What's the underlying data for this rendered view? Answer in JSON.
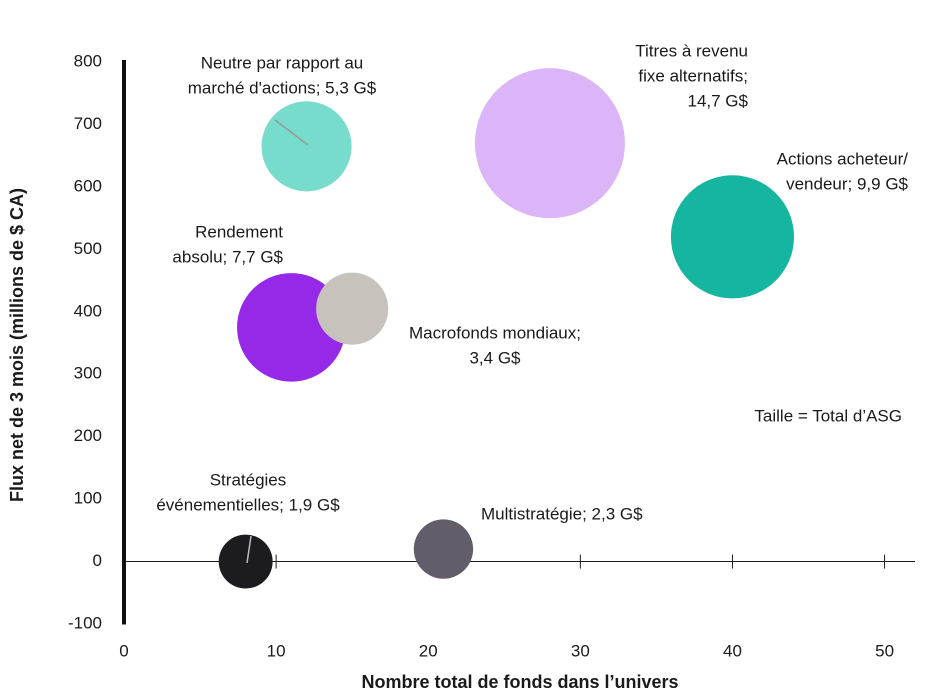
{
  "chart_data": {
    "type": "bubble",
    "x_label": "Nombre total de fonds dans l’univers",
    "y_label": "Flux net de 3 mois (millions de $ CA)",
    "annotation": "Taille = Total d’ASG",
    "labels": [
      [
        "Neutre par rapport au",
        "marché d'actions; 5,3 G$"
      ],
      [
        "Titres à revenu",
        "fixe alternatifs;",
        "14,7 G$"
      ],
      [
        "Actions acheteur/",
        "vendeur; 9,9 G$"
      ],
      [
        "Rendement",
        "absolu; 7,7 G$"
      ],
      [
        "Macrofonds mondiaux;",
        "3,4 G$"
      ],
      [
        "Stratégies",
        "événementielles; 1,9 G$"
      ],
      [
        "Multistratégie; 2,3 G$"
      ]
    ],
    "x": [
      12,
      28,
      40,
      11,
      15,
      8,
      21
    ],
    "values": [
      665,
      670,
      520,
      375,
      405,
      0,
      20
    ],
    "sizes": [
      5.3,
      14.7,
      9.9,
      7.7,
      3.4,
      1.9,
      2.3
    ],
    "colors": [
      "#77dccb",
      "#dcb4f8",
      "#15b5a0",
      "#9628e8",
      "#c8c2bc",
      "#1c1c20",
      "#625d68"
    ],
    "xlim": [
      0,
      52
    ],
    "xticks": [
      0,
      10,
      20,
      30,
      40,
      50
    ],
    "ylim": [
      -100,
      800
    ],
    "yticks": [
      -100,
      0,
      100,
      200,
      300,
      400,
      500,
      600,
      700,
      800
    ]
  }
}
